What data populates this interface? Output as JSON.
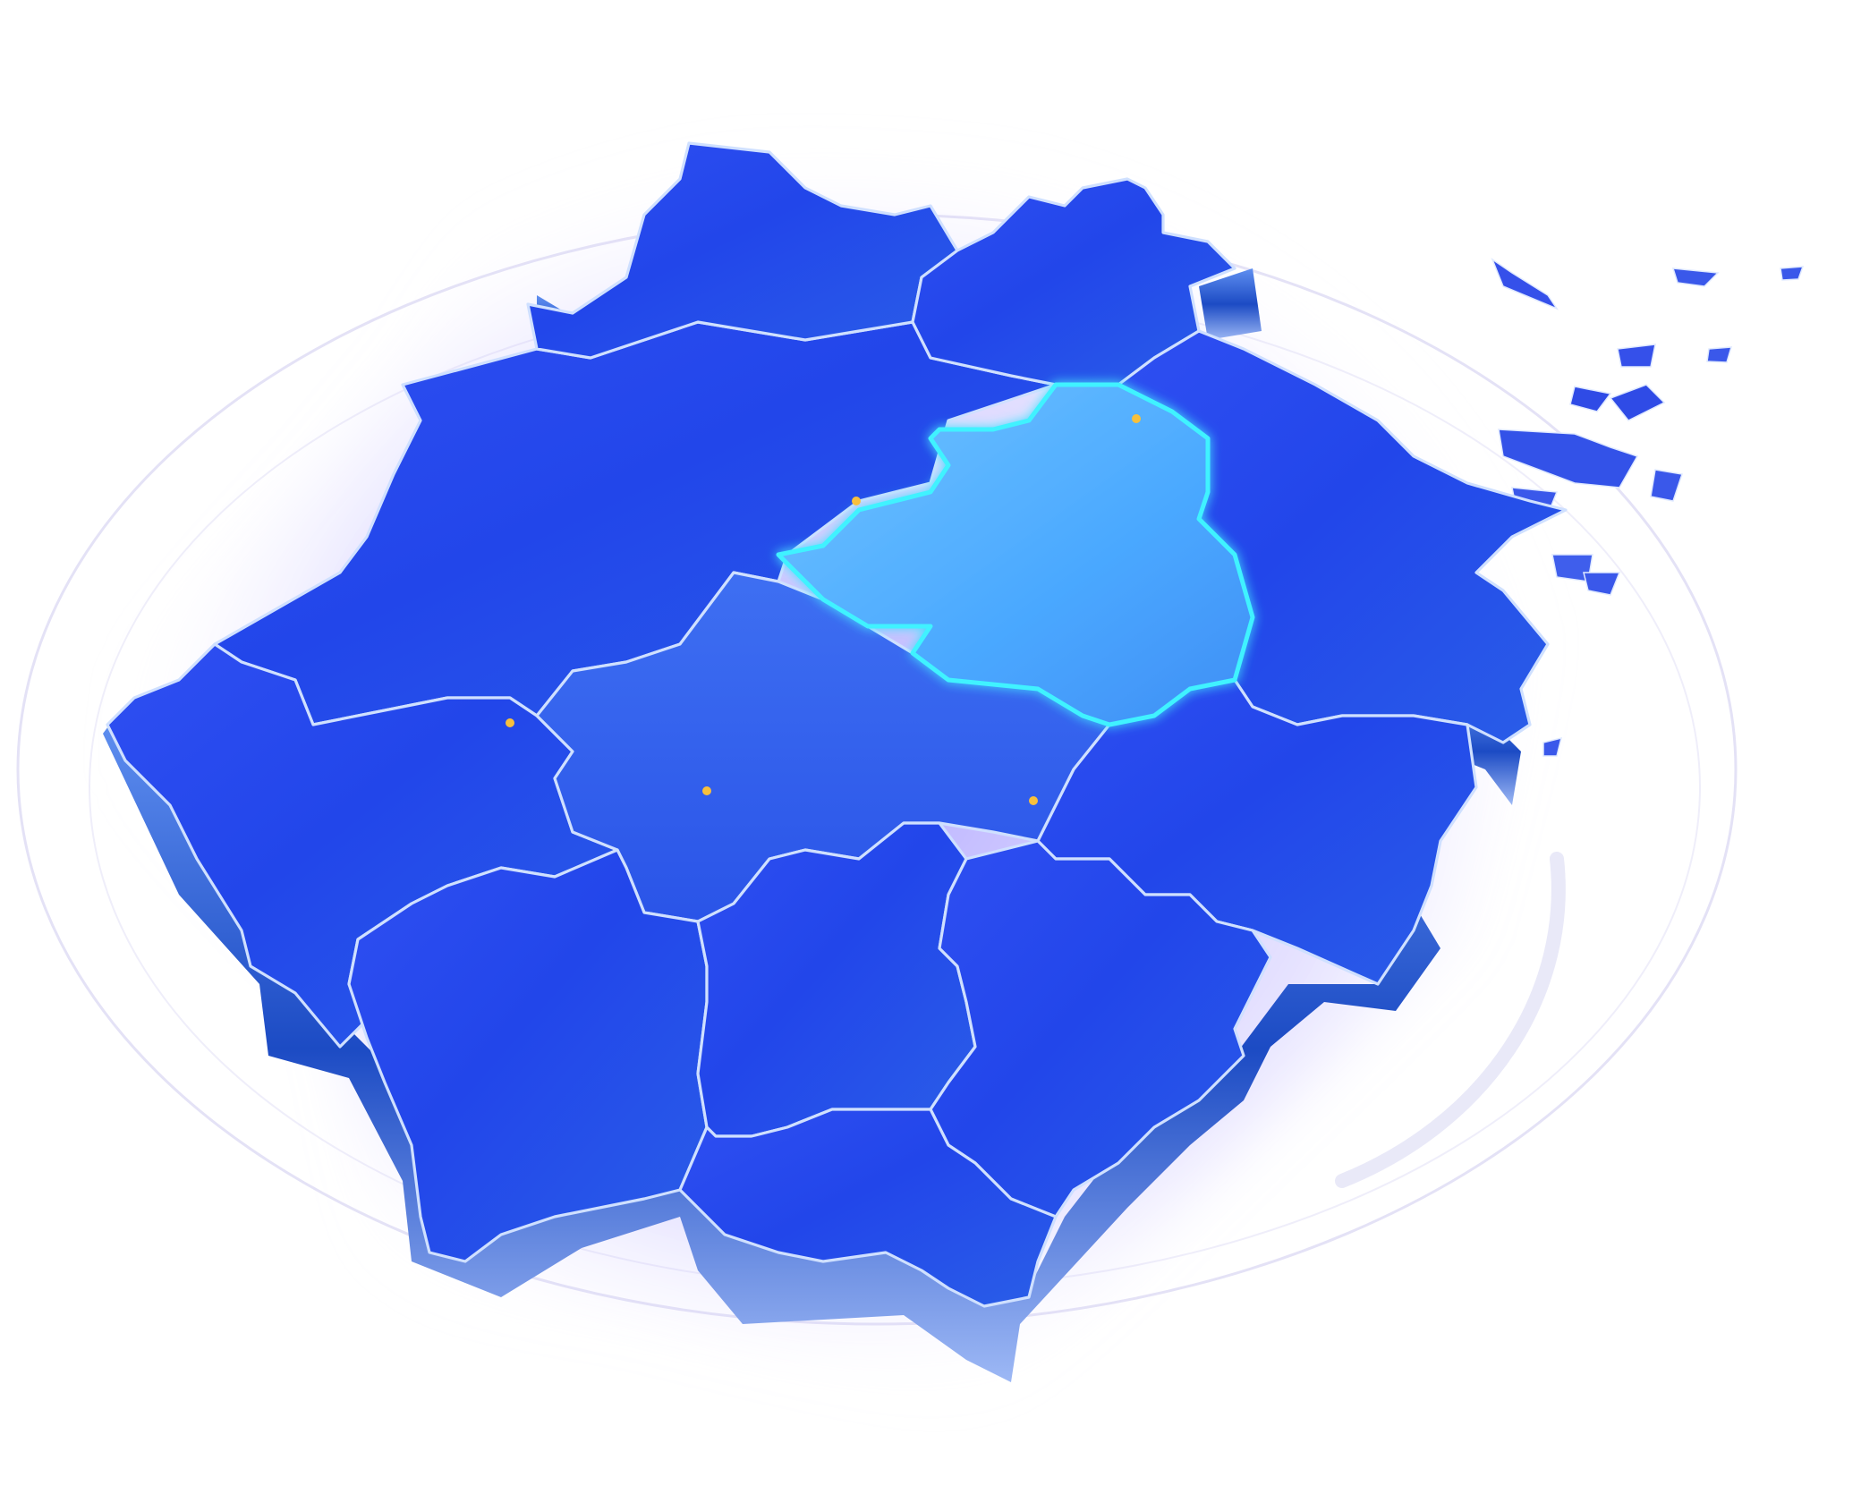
{
  "map": {
    "view": "3d-extruded-province-map",
    "colors": {
      "background": "#ffffff",
      "land_top": "#2a4bf0",
      "land_deep": "#1a33d8",
      "land_side": "#1b4fc9",
      "border": "#cfe0ff",
      "highlight_fill": "#4fb4ff",
      "highlight_border": "#3ff2ff",
      "beam": "#f4b12e",
      "halo": "#8a7cff",
      "ring": "#dcdcf5"
    },
    "regions": [
      {
        "id": "north-west",
        "highlighted": false
      },
      {
        "id": "north",
        "highlighted": false
      },
      {
        "id": "north-east",
        "highlighted": false
      },
      {
        "id": "west",
        "highlighted": false
      },
      {
        "id": "center-north",
        "highlighted": true
      },
      {
        "id": "east-coast",
        "highlighted": false
      },
      {
        "id": "center",
        "highlighted": false
      },
      {
        "id": "south-west",
        "highlighted": false
      },
      {
        "id": "south-center",
        "highlighted": false
      },
      {
        "id": "south-east",
        "highlighted": false
      },
      {
        "id": "south",
        "highlighted": false
      }
    ],
    "markers": [
      {
        "id": "marker-1"
      },
      {
        "id": "marker-2"
      },
      {
        "id": "marker-3"
      },
      {
        "id": "marker-4"
      },
      {
        "id": "marker-5"
      }
    ]
  }
}
